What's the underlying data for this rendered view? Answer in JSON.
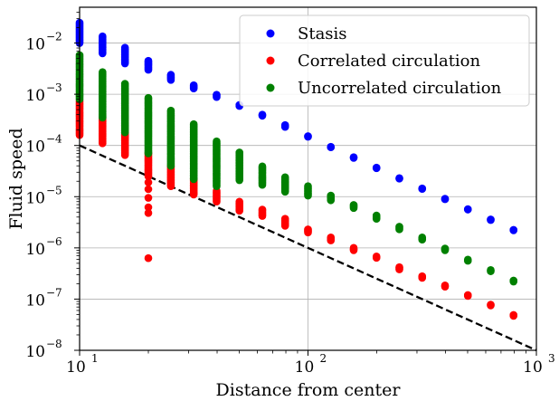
{
  "chart_data": {
    "type": "scatter",
    "title": "",
    "xlabel": "Distance from center",
    "ylabel": "Fluid speed",
    "xscale": "log",
    "yscale": "log",
    "xlim": [
      10,
      1000
    ],
    "ylim": [
      1e-08,
      0.05
    ],
    "x_ticks": [
      {
        "value": 10,
        "base": "10",
        "exp": "1"
      },
      {
        "value": 100,
        "base": "10",
        "exp": "2"
      },
      {
        "value": 1000,
        "base": "10",
        "exp": "3"
      }
    ],
    "y_ticks": [
      {
        "value": 1e-08,
        "base": "10",
        "exp": "−8"
      },
      {
        "value": 1e-07,
        "base": "10",
        "exp": "−7"
      },
      {
        "value": 1e-06,
        "base": "10",
        "exp": "−6"
      },
      {
        "value": 1e-05,
        "base": "10",
        "exp": "−5"
      },
      {
        "value": 0.0001,
        "base": "10",
        "exp": "−4"
      },
      {
        "value": 0.001,
        "base": "10",
        "exp": "−3"
      },
      {
        "value": 0.01,
        "base": "10",
        "exp": "−2"
      }
    ],
    "grid": true,
    "legend_position": "top-right",
    "series": [
      {
        "name": "Stasis",
        "color": "#0000ff",
        "points": [
          {
            "x": 10,
            "y_min": 0.01,
            "y_max": 0.025
          },
          {
            "x": 12.6,
            "y_min": 0.0063,
            "y_max": 0.0135
          },
          {
            "x": 15.8,
            "y_min": 0.004,
            "y_max": 0.0081
          },
          {
            "x": 20,
            "y_min": 0.003,
            "y_max": 0.0045
          },
          {
            "x": 25.1,
            "y_min": 0.0019,
            "y_max": 0.0024
          },
          {
            "x": 31.6,
            "y_min": 0.0013,
            "y_max": 0.0015
          },
          {
            "x": 39.8,
            "y_min": 0.00088,
            "y_max": 0.00098
          },
          {
            "x": 50.1,
            "y_min": 0.00059,
            "y_max": 0.00062
          },
          {
            "x": 63.1,
            "y_min": 0.00038,
            "y_max": 0.0004
          },
          {
            "x": 79.4,
            "y_min": 0.00023,
            "y_max": 0.00025
          },
          {
            "x": 100,
            "y_min": 0.000148,
            "y_max": 0.000152
          },
          {
            "x": 125.9,
            "y_min": 9.2e-05,
            "y_max": 9.4e-05
          },
          {
            "x": 158.5,
            "y_min": 5.7e-05,
            "y_max": 5.9e-05
          },
          {
            "x": 199.5,
            "y_min": 3.6e-05,
            "y_max": 3.7e-05
          },
          {
            "x": 251.2,
            "y_min": 2.25e-05,
            "y_max": 2.3e-05
          },
          {
            "x": 316.2,
            "y_min": 1.42e-05,
            "y_max": 1.45e-05
          },
          {
            "x": 398.1,
            "y_min": 8.9e-06,
            "y_max": 9.1e-06
          },
          {
            "x": 501.2,
            "y_min": 5.6e-06,
            "y_max": 5.7e-06
          },
          {
            "x": 631,
            "y_min": 3.5e-06,
            "y_max": 3.6e-06
          },
          {
            "x": 794.3,
            "y_min": 2.2e-06,
            "y_max": 2.25e-06
          }
        ]
      },
      {
        "name": "Correlated circulation",
        "color": "#ff0000",
        "points": [
          {
            "x": 10,
            "y_min": 0.00016,
            "y_max": 0.00075
          },
          {
            "x": 12.6,
            "y_min": 0.00011,
            "y_max": 0.00035
          },
          {
            "x": 15.8,
            "y_min": 6.5e-05,
            "y_max": 0.00018
          },
          {
            "x": 20,
            "y_min": 2.5e-05,
            "y_max": 7e-05,
            "extra": [
              1.9e-05,
              1.4e-05,
              9.5e-06,
              6.2e-06,
              4.8e-06,
              6.3e-07
            ]
          },
          {
            "x": 25.1,
            "y_min": 1.6e-05,
            "y_max": 4e-05
          },
          {
            "x": 31.6,
            "y_min": 1.1e-05,
            "y_max": 2.2e-05
          },
          {
            "x": 39.8,
            "y_min": 8e-06,
            "y_max": 1.3e-05
          },
          {
            "x": 50.1,
            "y_min": 5.3e-06,
            "y_max": 8e-06
          },
          {
            "x": 63.1,
            "y_min": 4.2e-06,
            "y_max": 5.6e-06
          },
          {
            "x": 79.4,
            "y_min": 2.7e-06,
            "y_max": 3.7e-06
          },
          {
            "x": 100,
            "y_min": 2e-06,
            "y_max": 2.3e-06
          },
          {
            "x": 125.9,
            "y_min": 1.4e-06,
            "y_max": 1.6e-06
          },
          {
            "x": 158.5,
            "y_min": 9e-07,
            "y_max": 1e-06
          },
          {
            "x": 199.5,
            "y_min": 6.4e-07,
            "y_max": 6.8e-07
          },
          {
            "x": 251.2,
            "y_min": 3.8e-07,
            "y_max": 4.2e-07
          },
          {
            "x": 316.2,
            "y_min": 2.6e-07,
            "y_max": 2.8e-07
          },
          {
            "x": 398.1,
            "y_min": 1.75e-07,
            "y_max": 1.85e-07
          },
          {
            "x": 501.2,
            "y_min": 1.15e-07,
            "y_max": 1.2e-07
          },
          {
            "x": 631,
            "y_min": 7.5e-08,
            "y_max": 7.8e-08
          },
          {
            "x": 794.3,
            "y_min": 4.7e-08,
            "y_max": 4.9e-08
          }
        ]
      },
      {
        "name": "Uncorrelated circulation",
        "color": "#008000",
        "points": [
          {
            "x": 10,
            "y_min": 0.0008,
            "y_max": 0.0058
          },
          {
            "x": 12.6,
            "y_min": 0.00035,
            "y_max": 0.0027
          },
          {
            "x": 15.8,
            "y_min": 0.00018,
            "y_max": 0.0016
          },
          {
            "x": 20,
            "y_min": 7e-05,
            "y_max": 0.00085
          },
          {
            "x": 25.1,
            "y_min": 4e-05,
            "y_max": 0.00048
          },
          {
            "x": 31.6,
            "y_min": 2.2e-05,
            "y_max": 0.00026
          },
          {
            "x": 39.8,
            "y_min": 1.6e-05,
            "y_max": 0.00012
          },
          {
            "x": 50.1,
            "y_min": 2.1e-05,
            "y_max": 7.3e-05
          },
          {
            "x": 63.1,
            "y_min": 1.7e-05,
            "y_max": 3.9e-05
          },
          {
            "x": 79.4,
            "y_min": 1.25e-05,
            "y_max": 2.4e-05
          },
          {
            "x": 100,
            "y_min": 1.05e-05,
            "y_max": 1.6e-05
          },
          {
            "x": 125.9,
            "y_min": 8.5e-06,
            "y_max": 1.05e-05
          },
          {
            "x": 158.5,
            "y_min": 6e-06,
            "y_max": 6.9e-06
          },
          {
            "x": 199.5,
            "y_min": 3.7e-06,
            "y_max": 4.3e-06
          },
          {
            "x": 251.2,
            "y_min": 2.3e-06,
            "y_max": 2.6e-06
          },
          {
            "x": 316.2,
            "y_min": 1.45e-06,
            "y_max": 1.6e-06
          },
          {
            "x": 398.1,
            "y_min": 9e-07,
            "y_max": 9.7e-07
          },
          {
            "x": 501.2,
            "y_min": 5.6e-07,
            "y_max": 5.9e-07
          },
          {
            "x": 631,
            "y_min": 3.5e-07,
            "y_max": 3.7e-07
          },
          {
            "x": 794.3,
            "y_min": 2.2e-07,
            "y_max": 2.3e-07
          }
        ]
      }
    ],
    "reference_line": {
      "style": "dashed",
      "color": "#000000",
      "from": {
        "x": 10,
        "y": 0.0001
      },
      "to": {
        "x": 1000,
        "y": 1e-08
      }
    }
  }
}
